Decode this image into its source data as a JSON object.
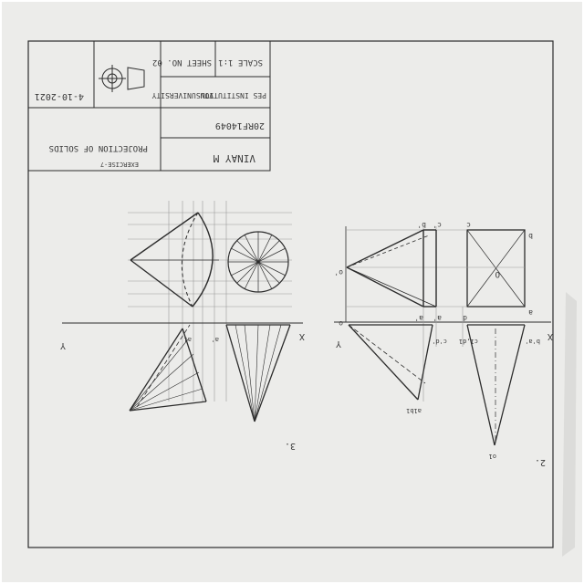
{
  "title_block": {
    "scale": "SCALE 1:1",
    "sheet_no": "SHEET NO. 02",
    "institution": "PES INSTITUTIONS",
    "university": "VTU UNIVERSITY",
    "usn": "20RF14049",
    "student_name": "VINAY M",
    "exercise": "EXERCISE-7",
    "subject": "PROJECTION OF SOLIDS",
    "date": "4-10-2021"
  },
  "problem_numbers": {
    "left": "3.",
    "right": "2."
  },
  "figure2": {
    "xy_x": "X",
    "xy_y": "Y",
    "top_labels": [
      "b'",
      "c'",
      "c",
      "b"
    ],
    "apex_label": "o'",
    "bottom_labels": [
      "a'",
      "a'",
      "d",
      "a"
    ],
    "origin_label": "o",
    "plan_center": "O",
    "low_labels": [
      "c'd'",
      "c1,d1",
      "b'a'"
    ],
    "tip_labels": [
      "a1b1",
      "o1"
    ]
  },
  "figure3": {
    "xy_x": "X",
    "xy_y": "Y",
    "labels": [
      "a1",
      "a'"
    ]
  },
  "colors": {
    "paper": "#ececea",
    "ink": "#2c2c2c",
    "construction": "#9a9a9a",
    "background": "#ffffff"
  }
}
